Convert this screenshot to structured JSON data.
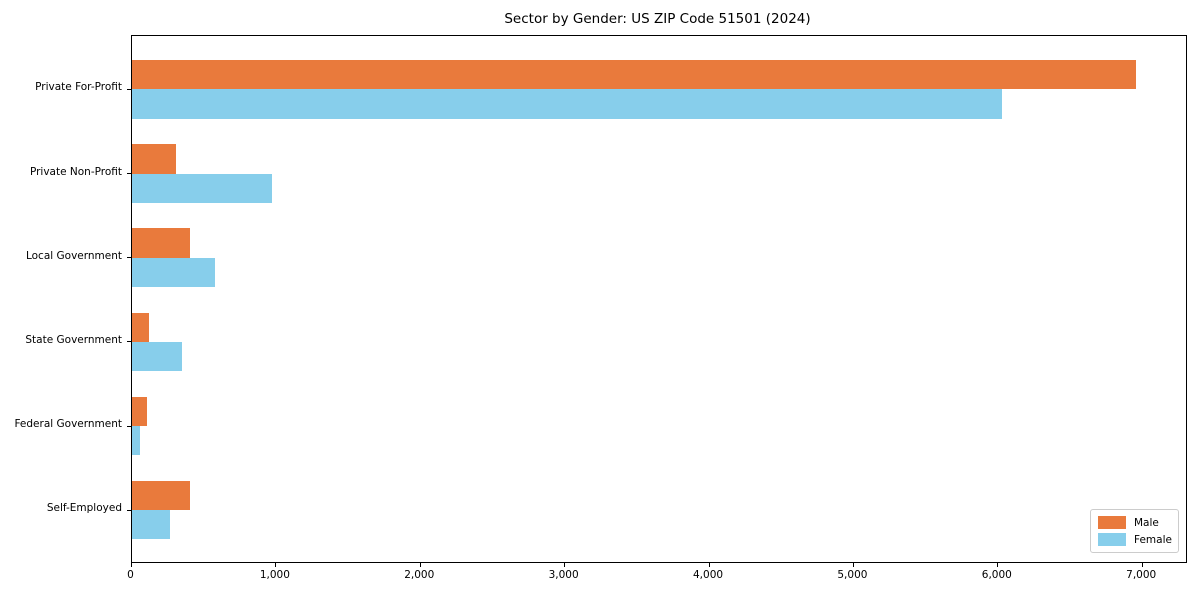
{
  "title": "Sector by Gender: US ZIP Code 51501 (2024)",
  "colors": {
    "male": "#e97a3c",
    "female": "#87ceeb",
    "axis": "#000000",
    "legend_border": "#cccccc",
    "background": "#ffffff"
  },
  "chart_data": {
    "type": "bar",
    "orientation": "horizontal",
    "title": "Sector by Gender: US ZIP Code 51501 (2024)",
    "xlabel": "",
    "ylabel": "",
    "categories": [
      "Private For-Profit",
      "Private Non-Profit",
      "Local Government",
      "State Government",
      "Federal Government",
      "Self-Employed"
    ],
    "series": [
      {
        "name": "Male",
        "color": "#e97a3c",
        "values": [
          6960,
          310,
          405,
          120,
          110,
          405
        ]
      },
      {
        "name": "Female",
        "color": "#87ceeb",
        "values": [
          6030,
          970,
          580,
          350,
          60,
          270
        ]
      }
    ],
    "xlim": [
      0,
      7300
    ],
    "x_ticks": [
      0,
      1000,
      2000,
      3000,
      4000,
      5000,
      6000,
      7000
    ],
    "x_tick_labels": [
      "0",
      "1,000",
      "2,000",
      "3,000",
      "4,000",
      "5,000",
      "6,000",
      "7,000"
    ],
    "grid": false,
    "legend_position": "lower right"
  },
  "legend": {
    "male_label": "Male",
    "female_label": "Female"
  }
}
